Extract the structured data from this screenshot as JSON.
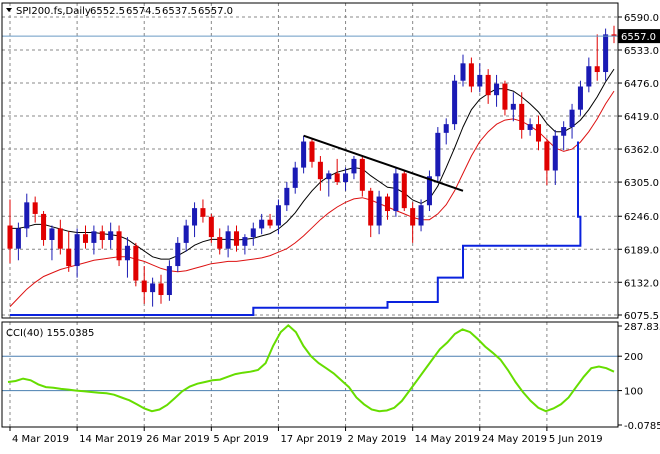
{
  "chart_data": [
    {
      "type": "candlestick",
      "symbol": "SPI200.fs,Daily",
      "ohlc_readout": [
        "6552.5",
        "6574.5",
        "6537.5",
        "6557.0"
      ],
      "last_price": 6557.0,
      "last_price_label": "6557.0",
      "y_ticks": [
        "6590.0",
        "6533.0",
        "6476.0",
        "6419.0",
        "6362.0",
        "6305.0",
        "6246.0",
        "6189.0",
        "6132.0",
        "6075.5"
      ],
      "y_tick_values": [
        6590.0,
        6533.0,
        6476.0,
        6419.0,
        6362.0,
        6305.0,
        6246.0,
        6189.0,
        6132.0,
        6075.5
      ],
      "ylim": [
        6075.5,
        6590.0
      ],
      "grid": true,
      "up_color": "#1a1ab4",
      "down_color": "#e00000",
      "candles": [
        [
          6230,
          6275,
          6165,
          6190
        ],
        [
          6190,
          6235,
          6170,
          6225
        ],
        [
          6225,
          6285,
          6210,
          6270
        ],
        [
          6270,
          6280,
          6235,
          6250
        ],
        [
          6250,
          6255,
          6195,
          6205
        ],
        [
          6205,
          6230,
          6170,
          6225
        ],
        [
          6225,
          6240,
          6180,
          6190
        ],
        [
          6190,
          6220,
          6150,
          6160
        ],
        [
          6160,
          6225,
          6140,
          6215
        ],
        [
          6215,
          6230,
          6190,
          6200
        ],
        [
          6200,
          6230,
          6180,
          6220
        ],
        [
          6220,
          6230,
          6190,
          6205
        ],
        [
          6205,
          6235,
          6190,
          6220
        ],
        [
          6220,
          6230,
          6160,
          6170
        ],
        [
          6170,
          6210,
          6140,
          6195
        ],
        [
          6195,
          6200,
          6125,
          6135
        ],
        [
          6135,
          6160,
          6095,
          6115
        ],
        [
          6115,
          6140,
          6090,
          6130
        ],
        [
          6130,
          6145,
          6095,
          6110
        ],
        [
          6110,
          6170,
          6100,
          6160
        ],
        [
          6160,
          6210,
          6150,
          6200
        ],
        [
          6200,
          6240,
          6185,
          6230
        ],
        [
          6230,
          6270,
          6210,
          6260
        ],
        [
          6260,
          6275,
          6235,
          6245
        ],
        [
          6245,
          6250,
          6200,
          6210
        ],
        [
          6210,
          6225,
          6180,
          6190
        ],
        [
          6190,
          6230,
          6175,
          6220
        ],
        [
          6220,
          6230,
          6185,
          6195
        ],
        [
          6195,
          6215,
          6180,
          6210
        ],
        [
          6210,
          6235,
          6195,
          6225
        ],
        [
          6225,
          6250,
          6215,
          6240
        ],
        [
          6240,
          6250,
          6225,
          6230
        ],
        [
          6230,
          6275,
          6215,
          6265
        ],
        [
          6265,
          6305,
          6255,
          6295
        ],
        [
          6295,
          6340,
          6285,
          6330
        ],
        [
          6330,
          6385,
          6320,
          6375
        ],
        [
          6375,
          6380,
          6330,
          6340
        ],
        [
          6340,
          6350,
          6290,
          6310
        ],
        [
          6310,
          6325,
          6280,
          6320
        ],
        [
          6320,
          6345,
          6300,
          6305
        ],
        [
          6305,
          6330,
          6290,
          6320
        ],
        [
          6320,
          6350,
          6310,
          6345
        ],
        [
          6345,
          6350,
          6280,
          6290
        ],
        [
          6290,
          6295,
          6210,
          6230
        ],
        [
          6230,
          6290,
          6215,
          6280
        ],
        [
          6280,
          6285,
          6240,
          6255
        ],
        [
          6255,
          6330,
          6245,
          6320
        ],
        [
          6320,
          6325,
          6255,
          6260
        ],
        [
          6260,
          6270,
          6200,
          6230
        ],
        [
          6230,
          6275,
          6220,
          6265
        ],
        [
          6265,
          6325,
          6255,
          6315
        ],
        [
          6315,
          6400,
          6305,
          6390
        ],
        [
          6390,
          6415,
          6370,
          6405
        ],
        [
          6405,
          6490,
          6395,
          6480
        ],
        [
          6480,
          6525,
          6470,
          6510
        ],
        [
          6510,
          6520,
          6460,
          6470
        ],
        [
          6470,
          6510,
          6460,
          6490
        ],
        [
          6490,
          6500,
          6440,
          6455
        ],
        [
          6455,
          6490,
          6435,
          6475
        ],
        [
          6475,
          6480,
          6420,
          6430
        ],
        [
          6430,
          6460,
          6410,
          6440
        ],
        [
          6440,
          6460,
          6380,
          6395
        ],
        [
          6395,
          6415,
          6385,
          6405
        ],
        [
          6405,
          6420,
          6360,
          6375
        ],
        [
          6375,
          6380,
          6300,
          6325
        ],
        [
          6325,
          6395,
          6300,
          6385
        ],
        [
          6385,
          6410,
          6360,
          6400
        ],
        [
          6400,
          6440,
          6380,
          6430
        ],
        [
          6430,
          6480,
          6420,
          6470
        ],
        [
          6470,
          6520,
          6460,
          6505
        ],
        [
          6505,
          6560,
          6480,
          6495
        ],
        [
          6495,
          6570,
          6480,
          6560
        ],
        [
          6560,
          6575,
          6545,
          6557
        ]
      ],
      "ma_fast": [
        6225,
        6225,
        6228,
        6232,
        6232,
        6228,
        6224,
        6220,
        6218,
        6218,
        6218,
        6216,
        6214,
        6212,
        6206,
        6196,
        6186,
        6176,
        6172,
        6172,
        6178,
        6186,
        6196,
        6202,
        6206,
        6206,
        6206,
        6205,
        6206,
        6208,
        6212,
        6216,
        6224,
        6236,
        6252,
        6272,
        6290,
        6305,
        6315,
        6322,
        6326,
        6330,
        6328,
        6316,
        6306,
        6296,
        6294,
        6286,
        6274,
        6268,
        6276,
        6298,
        6330,
        6364,
        6400,
        6430,
        6448,
        6458,
        6466,
        6466,
        6462,
        6452,
        6440,
        6426,
        6406,
        6392,
        6392,
        6400,
        6412,
        6430,
        6452,
        6478,
        6500
      ],
      "ma_slow": [
        6090,
        6105,
        6120,
        6132,
        6142,
        6148,
        6154,
        6158,
        6162,
        6166,
        6170,
        6172,
        6174,
        6176,
        6176,
        6172,
        6168,
        6162,
        6156,
        6152,
        6150,
        6152,
        6156,
        6160,
        6164,
        6166,
        6168,
        6168,
        6170,
        6172,
        6174,
        6178,
        6184,
        6190,
        6200,
        6212,
        6226,
        6240,
        6252,
        6262,
        6270,
        6276,
        6278,
        6274,
        6268,
        6262,
        6256,
        6250,
        6244,
        6240,
        6240,
        6250,
        6266,
        6290,
        6320,
        6350,
        6375,
        6392,
        6405,
        6412,
        6414,
        6410,
        6402,
        6392,
        6378,
        6364,
        6358,
        6362,
        6374,
        6392,
        6414,
        6440,
        6462
      ],
      "stop_line": [
        [
          0,
          6075.5
        ],
        [
          29,
          6075.5
        ],
        [
          29,
          6088
        ],
        [
          45,
          6088
        ],
        [
          45,
          6098
        ],
        [
          51,
          6098
        ],
        [
          51,
          6140
        ],
        [
          54,
          6140
        ],
        [
          54,
          6195
        ],
        [
          68,
          6195
        ],
        [
          68,
          6245
        ],
        [
          86,
          6245
        ],
        [
          86,
          6257
        ],
        [
          113,
          6257
        ],
        [
          113,
          6375
        ],
        [
          120,
          6375
        ]
      ],
      "trendline": [
        [
          35,
          6385
        ],
        [
          54,
          6290
        ]
      ],
      "x_ticks": [
        "4 Mar 2019",
        "14 Mar 2019",
        "26 Mar 2019",
        "5 Apr 2019",
        "17 Apr 2019",
        "2 May 2019",
        "14 May 2019",
        "24 May 2019",
        "5 Jun 2019"
      ],
      "x_tick_positions": [
        0,
        8,
        16,
        24,
        32,
        40,
        48,
        56,
        64
      ]
    },
    {
      "type": "line",
      "indicator_label": "CCI(40) 155.0385",
      "y_ticks": [
        "287.8357",
        "200",
        "100",
        "-0.0785"
      ],
      "y_tick_values": [
        287.8357,
        200,
        100,
        -0.0785
      ],
      "ylim": [
        -0.0785,
        287.8357
      ],
      "line_color": "#66dd00",
      "series": [
        {
          "values": [
            125,
            128,
            135,
            130,
            118,
            110,
            108,
            105,
            103,
            100,
            98,
            96,
            94,
            92,
            88,
            80,
            72,
            60,
            48,
            40,
            45,
            58,
            78,
            98,
            112,
            120,
            125,
            130,
            132,
            140,
            148,
            152,
            155,
            160,
            180,
            230,
            270,
            290,
            270,
            230,
            200,
            180,
            165,
            150,
            130,
            110,
            80,
            60,
            45,
            40,
            42,
            50,
            70,
            100,
            130,
            160,
            190,
            220,
            240,
            265,
            278,
            270,
            250,
            228,
            210,
            190,
            160,
            125,
            95,
            70,
            50,
            40,
            48,
            60,
            80,
            110,
            140,
            165,
            170,
            165,
            155
          ]
        }
      ]
    }
  ]
}
